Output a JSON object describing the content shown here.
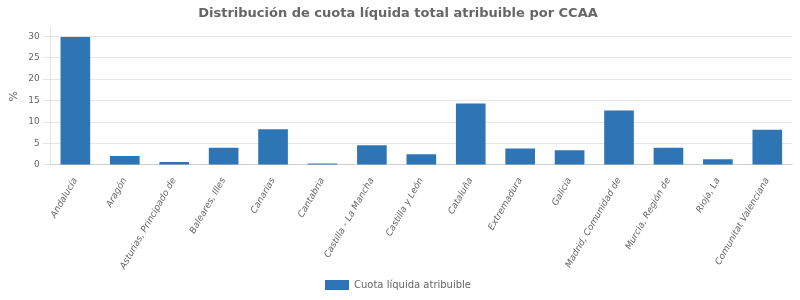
{
  "chart_data": {
    "type": "bar",
    "title": "Distribución de cuota líquida total atribuible por CCAA",
    "categories": [
      "Andalucía",
      "Aragón",
      "Asturias, Principado de",
      "Baleares, Illes",
      "Canarias",
      "Cantabria",
      "Castilla - La Mancha",
      "Castilla y León",
      "Cataluña",
      "Extremadura",
      "Galicia",
      "Madrid, Comunidad de",
      "Murcia, Región de",
      "Rioja, La",
      "Comunitat Valenciana"
    ],
    "series": [
      {
        "name": "Cuota líquida atribuible",
        "color": "#2e75b6",
        "values": [
          29.8,
          2.1,
          0.7,
          4.0,
          8.3,
          0.35,
          4.6,
          2.5,
          14.3,
          3.8,
          3.4,
          12.7,
          4.0,
          1.3,
          8.2
        ]
      }
    ],
    "ylabel": "%",
    "ylim": [
      0,
      32
    ],
    "yticks": [
      0,
      5,
      10,
      15,
      20,
      25,
      30
    ],
    "grid": true,
    "legend": "bottom"
  }
}
